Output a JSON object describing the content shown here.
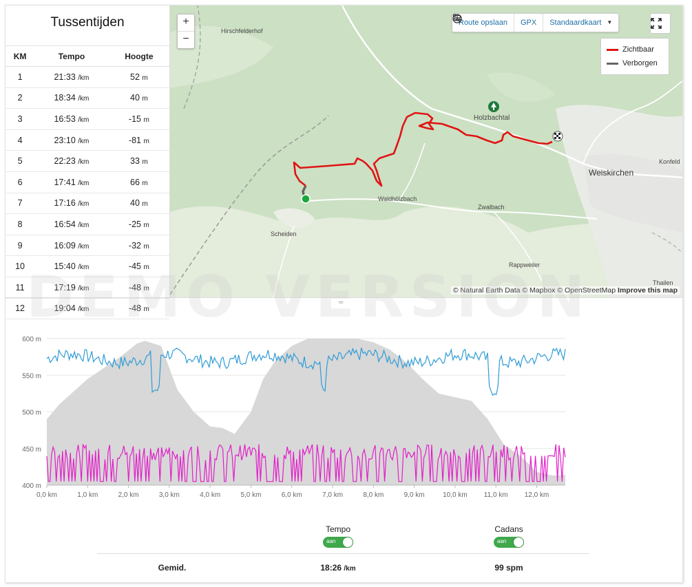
{
  "splits": {
    "title": "Tussentijden",
    "headers": [
      "KM",
      "Tempo",
      "Hoogte"
    ],
    "pace_unit": "/km",
    "alt_unit": "m",
    "rows": [
      {
        "km": "1",
        "pace": "21:33",
        "alt": "52"
      },
      {
        "km": "2",
        "pace": "18:34",
        "alt": "40"
      },
      {
        "km": "3",
        "pace": "16:53",
        "alt": "-15"
      },
      {
        "km": "4",
        "pace": "23:10",
        "alt": "-81"
      },
      {
        "km": "5",
        "pace": "22:23",
        "alt": "33"
      },
      {
        "km": "6",
        "pace": "17:41",
        "alt": "66"
      },
      {
        "km": "7",
        "pace": "17:16",
        "alt": "40"
      },
      {
        "km": "8",
        "pace": "16:54",
        "alt": "-25"
      },
      {
        "km": "9",
        "pace": "16:09",
        "alt": "-32"
      },
      {
        "km": "10",
        "pace": "15:40",
        "alt": "-45"
      },
      {
        "km": "11",
        "pace": "17:19",
        "alt": "-48"
      },
      {
        "km": "12",
        "pace": "19:04",
        "alt": "-48"
      }
    ]
  },
  "map": {
    "zoom_in": "+",
    "zoom_out": "−",
    "save_route": "Route opslaan",
    "gpx": "GPX",
    "map_style": "Standaardkaart",
    "fullscreen_icon": "expand-icon",
    "legend": [
      {
        "label": "Zichtbaar",
        "color": "#e01414"
      },
      {
        "label": "Verborgen",
        "color": "#666666"
      }
    ],
    "places": {
      "hirsch": "Hirschfelderhof",
      "holz": "Holzbachtal",
      "weis": "Weiskirchen",
      "konfeld": "Konfeld",
      "wald": "Waldhölzbach",
      "zwal": "Zwalbach",
      "scheiden": "Scheiden",
      "rapp": "Rappweiler",
      "thailen": "Thailen"
    },
    "attribution_prefix": "© Natural Earth Data © Mapbox © OpenStreetMap",
    "attribution_link": "Improve this map"
  },
  "watermark": "DEMO VERSION",
  "chart_data": {
    "type": "line",
    "x_ticks": [
      "0,0 km",
      "1,0 km",
      "2,0 km",
      "3,0 km",
      "4,0 km",
      "5,0 km",
      "6,0 km",
      "7,0 km",
      "8,0 km",
      "9,0 km",
      "10,0 km",
      "11,0 km",
      "12,0 km"
    ],
    "y_ticks": [
      "600 m",
      "550 m",
      "500 m",
      "450 m",
      "400 m"
    ],
    "ylim": [
      400,
      600
    ],
    "xlim": [
      0,
      12.7
    ],
    "elevation_x": [
      0,
      0.3,
      0.6,
      1.0,
      1.4,
      1.8,
      2.2,
      2.4,
      2.8,
      3.0,
      3.2,
      3.6,
      4.0,
      4.3,
      4.6,
      5.0,
      5.3,
      5.6,
      6.0,
      6.4,
      6.8,
      7.0,
      7.3,
      7.6,
      8.0,
      8.4,
      8.8,
      9.2,
      9.6,
      10.0,
      10.4,
      10.8,
      11.2,
      11.6,
      12.0,
      12.4,
      12.7
    ],
    "elevation_y": [
      490,
      510,
      525,
      545,
      560,
      575,
      593,
      597,
      590,
      560,
      530,
      500,
      480,
      478,
      470,
      500,
      545,
      570,
      590,
      612,
      622,
      630,
      617,
      605,
      595,
      585,
      568,
      545,
      525,
      520,
      515,
      490,
      455,
      440,
      418,
      413,
      414
    ],
    "tempo_color": "#2e9bd6",
    "cadans_color": "#e21ec9",
    "elevation_color": "#d8d8d8"
  },
  "summary": {
    "tempo_label": "Tempo",
    "cadans_label": "Cadans",
    "toggle_text": "aan",
    "row_label": "Gemid.",
    "tempo_value": "18:26",
    "tempo_unit": "/km",
    "cadans_value": "99 spm"
  }
}
